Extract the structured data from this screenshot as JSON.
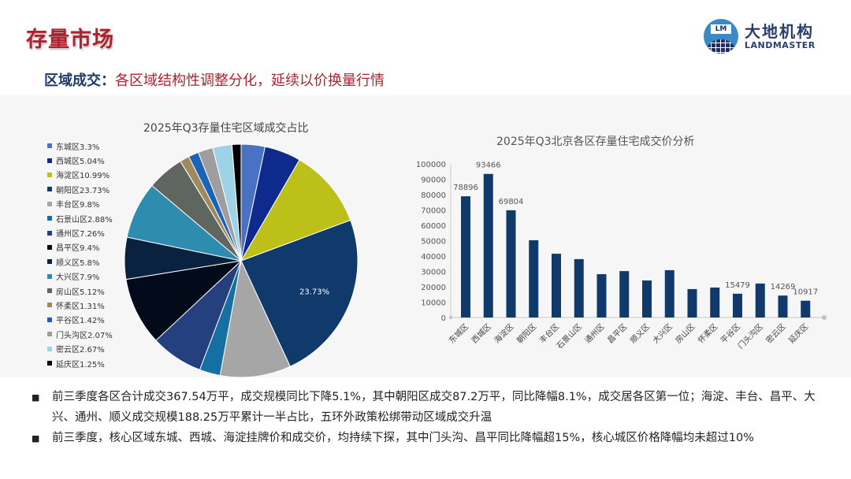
{
  "header": {
    "title": "存量市场",
    "logo_cn": "大地机构",
    "logo_en": "LANDMASTER",
    "logo_mark_text": "LM"
  },
  "subtitle": {
    "lead": "区域成交：",
    "rest": "各区域结构性调整分化，延续以价换量行情"
  },
  "colors": {
    "title_red": "#b0202d",
    "navy": "#1c3a66",
    "bar": "#0f3a6b",
    "panel_bg": "#f6f6f6"
  },
  "chart_data": [
    {
      "type": "pie",
      "title": "2025年Q3存量住宅区域成交占比",
      "legend_position": "left",
      "categories": [
        "东城区",
        "西城区",
        "海淀区",
        "朝阳区",
        "丰台区",
        "石景山区",
        "通州区",
        "昌平区",
        "顺义区",
        "大兴区",
        "房山区",
        "怀柔区",
        "平谷区",
        "门头沟区",
        "密云区",
        "延庆区"
      ],
      "values": [
        3.3,
        5.04,
        10.99,
        23.73,
        9.8,
        2.88,
        7.26,
        9.4,
        5.8,
        7.9,
        5.12,
        1.31,
        1.42,
        2.07,
        2.67,
        1.25
      ],
      "legend_labels": [
        "东城区3.3%",
        "西城区5.04%",
        "海淀区10.99%",
        "朝阳区23.73%",
        "丰台区9.8%",
        "石景山区2.88%",
        "通州区7.26%",
        "昌平区9.4%",
        "顺义区5.8%",
        "大兴区7.9%",
        "房山区5.12%",
        "怀柔区1.31%",
        "平谷区1.42%",
        "门头沟区2.07%",
        "密云区2.67%",
        "延庆区1.25%"
      ],
      "colors": [
        "#4a72c4",
        "#0d2a8c",
        "#bcc018",
        "#0f3a6b",
        "#a6a6a6",
        "#156fa0",
        "#24407e",
        "#030a1a",
        "#0a2240",
        "#2e8cae",
        "#5f6660",
        "#a08a5c",
        "#1b63b8",
        "#9e9e9e",
        "#9ed2e6",
        "#000000"
      ],
      "data_labels": [
        {
          "category": "朝阳区",
          "text": "23.73%"
        }
      ]
    },
    {
      "type": "bar",
      "title": "2025年Q3北京各区存量住宅成交价分析",
      "categories": [
        "东城区",
        "西城区",
        "海淀区",
        "朝阳区",
        "丰台区",
        "石景山区",
        "通州区",
        "昌平区",
        "顺义区",
        "大兴区",
        "房山区",
        "怀柔区",
        "平谷区",
        "门头沟区",
        "密云区",
        "延庆区"
      ],
      "values": [
        78896,
        93466,
        69804,
        50300,
        41500,
        38000,
        28200,
        30200,
        24100,
        30800,
        18500,
        19500,
        15479,
        22100,
        14269,
        10917
      ],
      "data_labels": {
        "0": "78896",
        "1": "93466",
        "2": "69804",
        "12": "15479",
        "14": "14269",
        "15": "10917"
      },
      "yticks": [
        "0",
        "10000",
        "20000",
        "30000",
        "40000",
        "50000",
        "60000",
        "70000",
        "80000",
        "90000",
        "100000"
      ],
      "ylim": [
        0,
        100000
      ],
      "xlabel": "",
      "ylabel": "",
      "grid": false
    }
  ],
  "bullets": [
    "前三季度各区合计成交367.54万平，成交规模同比下降5.1%，其中朝阳区成交87.2万平，同比降幅8.1%，成交居各区第一位；海淀、丰台、昌平、大兴、通州、顺义成交规模188.25万平累计一半占比，五环外政策松绑带动区域成交升温",
    "前三季度，核心区域东城、西城、海淀挂牌价和成交价，均持续下探，其中门头沟、昌平同比降幅超15%，核心城区价格降幅均未超过10%"
  ],
  "bullet_mark": "■"
}
